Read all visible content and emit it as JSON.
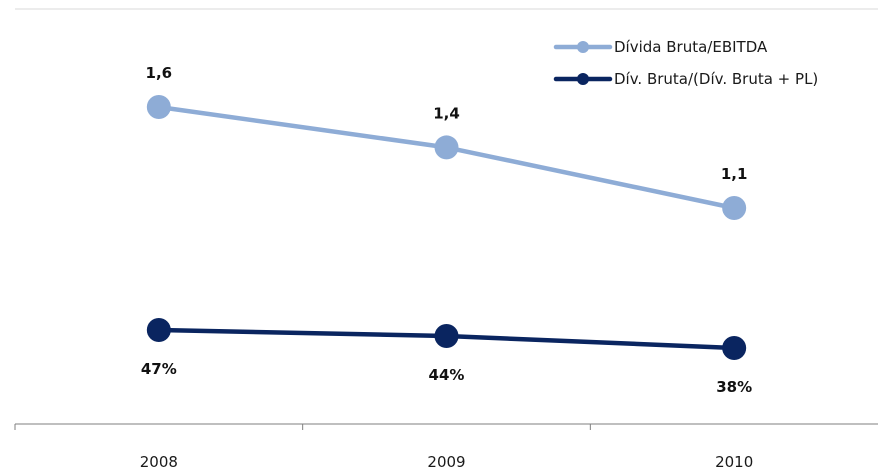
{
  "chart_data": {
    "type": "line",
    "categories": [
      "2008",
      "2009",
      "2010"
    ],
    "series": [
      {
        "name": "Dívida Bruta/EBITDA",
        "values": [
          1.6,
          1.4,
          1.1
        ],
        "labels": [
          "1,6",
          "1,4",
          "1,1"
        ],
        "color": "#8eacd6",
        "label_position": "above"
      },
      {
        "name": "Dív. Bruta/(Dív. Bruta + PL)",
        "values": [
          47,
          44,
          38
        ],
        "labels": [
          "47%",
          "44%",
          "38%"
        ],
        "color": "#0a2560",
        "label_position": "below"
      }
    ],
    "legend_position": "top-right",
    "grid": false,
    "title": "",
    "xlabel": "",
    "ylabel": ""
  }
}
